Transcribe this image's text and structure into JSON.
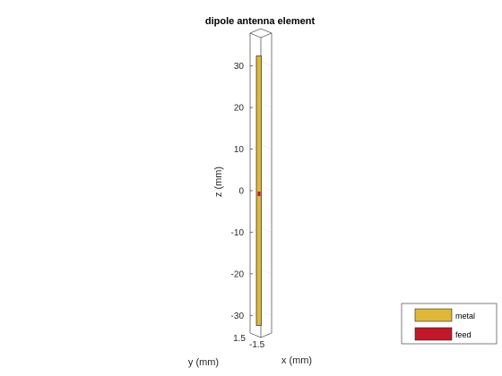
{
  "title": "dipole antenna element",
  "axes": {
    "z_label": "z (mm)",
    "y_label": "y (mm)",
    "x_label": "x (mm)",
    "z_ticks": [
      {
        "value": 30,
        "label": "30"
      },
      {
        "value": 20,
        "label": "20"
      },
      {
        "value": 10,
        "label": "10"
      },
      {
        "value": 0,
        "label": "0"
      },
      {
        "value": -10,
        "label": "-10"
      },
      {
        "value": -20,
        "label": "-20"
      },
      {
        "value": -30,
        "label": "-30"
      }
    ],
    "y_tick_label": "1.5",
    "x_tick_label": "-1.5",
    "z_range": [
      -35,
      35
    ]
  },
  "element": {
    "metal_z_range": [
      -32.4,
      32.4
    ],
    "feed_z": 0
  },
  "legend": {
    "items": [
      {
        "label": "metal",
        "color": "#dfb839"
      },
      {
        "label": "feed",
        "color": "#c0182b"
      }
    ]
  },
  "colors": {
    "metal": "#dfb839",
    "feed": "#c0182b",
    "box": "#262626",
    "grid": "#e6e6e6"
  }
}
